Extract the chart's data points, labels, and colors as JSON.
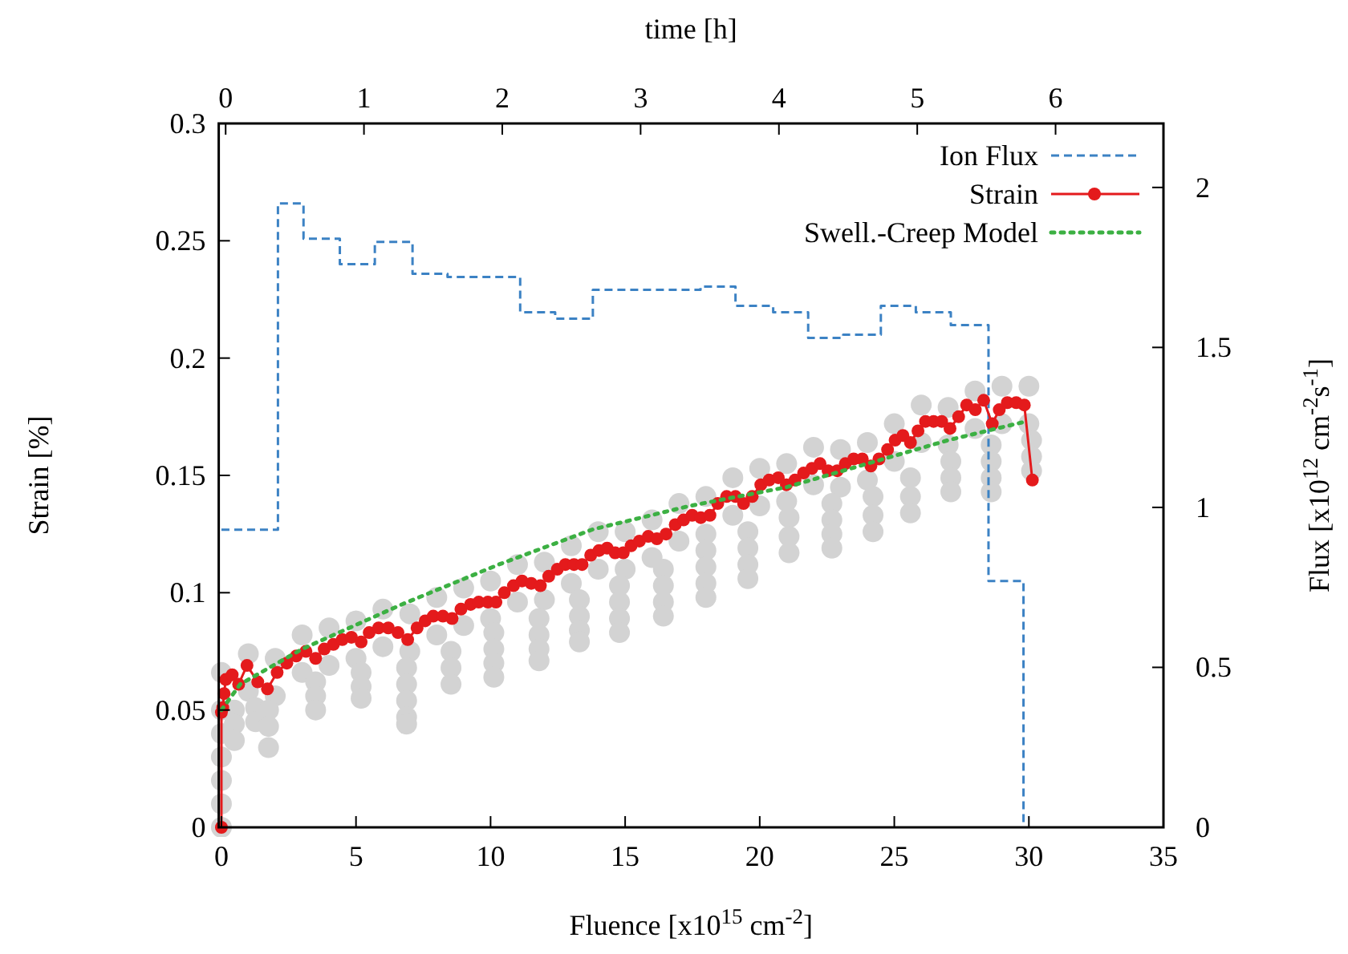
{
  "chart_data": {
    "type": "line",
    "xlabel": "Fluence [x10$^{15}$ cm$^{-2}$]",
    "ylabel": "Strain [%]",
    "y2label": "Flux [x10$^{12}$ cm$^{-2}$s$^{-1}$]",
    "x2label": "time [h]",
    "xlim": [
      -0.1,
      35
    ],
    "xticks": [
      0,
      5,
      10,
      15,
      20,
      25,
      30,
      35
    ],
    "ylim": [
      0,
      0.3
    ],
    "yticks": [
      0,
      0.05,
      0.1,
      0.15,
      0.2,
      0.25,
      0.3
    ],
    "y2lim": [
      0,
      2.2
    ],
    "y2ticks": [
      0,
      0.5,
      1,
      1.5,
      2
    ],
    "x2lim": [
      -0.05,
      6.78
    ],
    "x2ticks": [
      0,
      1,
      2,
      3,
      4,
      5,
      6
    ],
    "grid": false,
    "legend": "top right",
    "series": [
      {
        "type": "scatter",
        "color": "#d3d3d3",
        "marker": "circle",
        "x": [
          0,
          0,
          0,
          0,
          0,
          0,
          0,
          1,
          2,
          3,
          4,
          5,
          6,
          7,
          8,
          9,
          10,
          11,
          12,
          13,
          14,
          15,
          16,
          17,
          18,
          19,
          20,
          21,
          22,
          23,
          24,
          25,
          26,
          27,
          28,
          29,
          30,
          1,
          2,
          3,
          4,
          5,
          6,
          7,
          8,
          9,
          10,
          11,
          12,
          13,
          14,
          15,
          16,
          17,
          18,
          19,
          20,
          21,
          22,
          23,
          24,
          25,
          26,
          27,
          28,
          29,
          30,
          0.48,
          0.48,
          0.48,
          1.27,
          1.27,
          1.75,
          1.75,
          1.75,
          3.5,
          3.5,
          3.5,
          5.19,
          5.19,
          5.19,
          6.88,
          6.88,
          6.88,
          6.88,
          6.88,
          8.53,
          8.53,
          8.53,
          10.12,
          10.12,
          10.12,
          10.12,
          11.8,
          11.8,
          11.8,
          11.8,
          13.3,
          13.3,
          13.3,
          13.3,
          14.79,
          14.79,
          14.79,
          14.79,
          16.42,
          16.42,
          16.42,
          16.42,
          18,
          18,
          18,
          18,
          19.56,
          19.56,
          19.56,
          19.56,
          21.09,
          21.09,
          21.09,
          22.68,
          22.68,
          22.68,
          22.68,
          24.21,
          24.21,
          24.21,
          25.6,
          25.6,
          25.6,
          27.1,
          27.1,
          27.1,
          28.6,
          28.6,
          28.6,
          28.6,
          30.1,
          30.1,
          30.1
        ],
        "values": [
          0,
          0.01,
          0.02,
          0.03,
          0.04,
          0.05,
          0.066,
          0.074,
          0.072,
          0.082,
          0.085,
          0.088,
          0.093,
          0.091,
          0.098,
          0.102,
          0.105,
          0.112,
          0.113,
          0.12,
          0.126,
          0.126,
          0.131,
          0.138,
          0.141,
          0.149,
          0.153,
          0.155,
          0.162,
          0.161,
          0.164,
          0.172,
          0.18,
          0.179,
          0.186,
          0.188,
          0.188,
          0.058,
          0.056,
          0.066,
          0.069,
          0.072,
          0.077,
          0.075,
          0.082,
          0.086,
          0.089,
          0.096,
          0.097,
          0.104,
          0.11,
          0.11,
          0.115,
          0.122,
          0.125,
          0.133,
          0.137,
          0.139,
          0.146,
          0.145,
          0.148,
          0.156,
          0.164,
          0.163,
          0.17,
          0.172,
          0.172,
          0.05,
          0.044,
          0.037,
          0.051,
          0.045,
          0.05,
          0.043,
          0.034,
          0.062,
          0.056,
          0.05,
          0.066,
          0.06,
          0.055,
          0.068,
          0.061,
          0.054,
          0.047,
          0.044,
          0.075,
          0.068,
          0.061,
          0.083,
          0.076,
          0.07,
          0.064,
          0.089,
          0.082,
          0.076,
          0.071,
          0.097,
          0.09,
          0.084,
          0.079,
          0.103,
          0.096,
          0.089,
          0.083,
          0.11,
          0.103,
          0.096,
          0.09,
          0.118,
          0.111,
          0.104,
          0.098,
          0.126,
          0.119,
          0.112,
          0.106,
          0.132,
          0.124,
          0.117,
          0.138,
          0.131,
          0.125,
          0.119,
          0.141,
          0.133,
          0.126,
          0.149,
          0.141,
          0.134,
          0.156,
          0.149,
          0.143,
          0.163,
          0.156,
          0.149,
          0.143,
          0.165,
          0.158,
          0.152
        ]
      },
      {
        "type": "step",
        "name": "Ion Flux",
        "color": "#3c82c4",
        "axis": "y2",
        "line_style": "dashed",
        "marker": "none",
        "x": [
          0,
          2.1,
          3.05,
          4.4,
          5.7,
          7.1,
          8.4,
          11.1,
          12.4,
          13.8,
          17.8,
          19.1,
          20.5,
          21.8,
          23.1,
          24.5,
          25.8,
          27.1,
          28.5,
          29.8
        ],
        "values": [
          0.93,
          1.95,
          1.84,
          1.76,
          1.83,
          1.73,
          1.72,
          1.61,
          1.59,
          1.68,
          1.69,
          1.63,
          1.61,
          1.53,
          1.54,
          1.63,
          1.61,
          1.57,
          0.77,
          0
        ]
      },
      {
        "name": "Strain",
        "color": "#e41a1c",
        "line_style": "solid",
        "marker": "circle",
        "x": [
          0,
          0,
          0.05,
          0.1,
          0.16,
          0.4,
          0.64,
          0.95,
          1.35,
          1.71,
          2.07,
          2.43,
          2.78,
          3.14,
          3.5,
          3.82,
          4.16,
          4.49,
          4.83,
          5.19,
          5.49,
          5.84,
          6.2,
          6.56,
          6.92,
          7.27,
          7.57,
          7.87,
          8.23,
          8.57,
          8.9,
          9.26,
          9.56,
          9.9,
          10.2,
          10.51,
          10.85,
          11.17,
          11.51,
          11.85,
          12.16,
          12.48,
          12.78,
          13.1,
          13.4,
          13.72,
          14.03,
          14.33,
          14.63,
          14.93,
          15.22,
          15.53,
          15.86,
          16.18,
          16.52,
          16.86,
          17.17,
          17.49,
          17.81,
          18.15,
          18.44,
          18.77,
          19.1,
          19.4,
          19.72,
          20.04,
          20.35,
          20.69,
          20.99,
          21.31,
          21.63,
          21.94,
          22.24,
          22.54,
          22.88,
          23.18,
          23.49,
          23.81,
          24.13,
          24.43,
          24.75,
          25.03,
          25.32,
          25.6,
          25.88,
          26.16,
          26.46,
          26.76,
          27.07,
          27.39,
          27.69,
          28.01,
          28.32,
          28.64,
          28.9,
          29.2,
          29.53,
          29.83,
          30.13
        ],
        "values": [
          0,
          0.049,
          0.051,
          0.057,
          0.063,
          0.065,
          0.061,
          0.069,
          0.062,
          0.059,
          0.066,
          0.07,
          0.073,
          0.075,
          0.072,
          0.076,
          0.078,
          0.08,
          0.081,
          0.079,
          0.083,
          0.085,
          0.085,
          0.083,
          0.08,
          0.085,
          0.088,
          0.09,
          0.09,
          0.089,
          0.093,
          0.095,
          0.096,
          0.096,
          0.096,
          0.1,
          0.103,
          0.105,
          0.104,
          0.103,
          0.107,
          0.11,
          0.112,
          0.112,
          0.112,
          0.116,
          0.118,
          0.119,
          0.117,
          0.117,
          0.12,
          0.122,
          0.124,
          0.123,
          0.125,
          0.129,
          0.131,
          0.133,
          0.132,
          0.133,
          0.138,
          0.141,
          0.141,
          0.138,
          0.141,
          0.146,
          0.148,
          0.149,
          0.146,
          0.148,
          0.151,
          0.153,
          0.155,
          0.152,
          0.152,
          0.155,
          0.157,
          0.157,
          0.154,
          0.157,
          0.161,
          0.165,
          0.167,
          0.164,
          0.169,
          0.173,
          0.173,
          0.173,
          0.17,
          0.175,
          0.18,
          0.178,
          0.182,
          0.172,
          0.178,
          0.181,
          0.181,
          0.18,
          0.148
        ]
      },
      {
        "name": "Swell.-Creep Model",
        "color": "#3cb043",
        "line_style": "dotted",
        "marker": "none",
        "x": [
          0,
          0.7,
          3,
          6.7,
          10.3,
          13.8,
          17.4,
          21,
          27,
          29.9
        ],
        "values": [
          0.05,
          0.061,
          0.076,
          0.095,
          0.112,
          0.127,
          0.137,
          0.145,
          0.165,
          0.173
        ]
      }
    ]
  }
}
